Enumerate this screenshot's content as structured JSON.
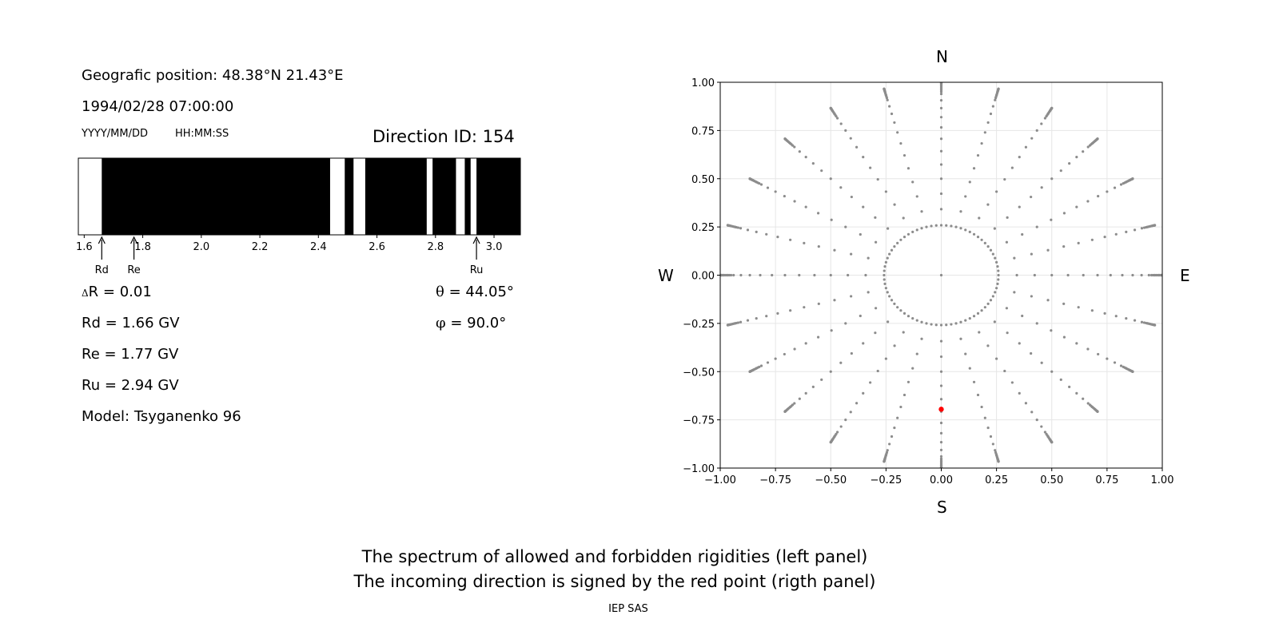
{
  "left_panel": {
    "position_line": "Geografic position: 48.38°N 21.43°E",
    "datetime": "1994/02/28 07:00:00",
    "date_format": "YYYY/MM/DD",
    "time_format": "HH:MM:SS",
    "direction_id": "Direction ID: 154",
    "markers": {
      "rd": "Rd",
      "re": "Re",
      "ru": "Ru"
    },
    "delta_r_symbol": "Δ",
    "delta_r": "R = 0.01",
    "rd": "Rd = 1.66 GV",
    "re": "Re = 1.77 GV",
    "ru": "Ru = 2.94 GV",
    "model": "Model: Tsyganenko 96",
    "theta_symbol": "θ",
    "theta": " = 44.05°",
    "phi_symbol": "φ",
    "phi": " = 90.0°"
  },
  "compass": {
    "n": "N",
    "s": "S",
    "w": "W",
    "e": "E"
  },
  "caption": {
    "line1": "The spectrum of allowed and forbidden rigidities (left panel)",
    "line2": "The incoming direction is signed by the red point (rigth panel)",
    "credit": "IEP SAS"
  },
  "chart_data": [
    {
      "type": "bar",
      "description_kind": "rigidity spectrum",
      "xlim": [
        1.58,
        3.09
      ],
      "xticks": [
        1.6,
        1.8,
        2.0,
        2.2,
        2.4,
        2.6,
        2.8,
        3.0
      ],
      "xtick_labels": [
        "1.6",
        "1.8",
        "2.0",
        "2.2",
        "2.4",
        "2.6",
        "2.8",
        "3.0"
      ],
      "allowed_color": "#000000",
      "forbidden_color": "#ffffff",
      "allowed_intervals": [
        [
          1.66,
          2.44
        ],
        [
          2.49,
          2.52
        ],
        [
          2.56,
          2.77
        ],
        [
          2.79,
          2.87
        ],
        [
          2.9,
          2.92
        ],
        [
          2.94,
          3.09
        ]
      ],
      "markers": {
        "Rd": 1.66,
        "Re": 1.77,
        "Ru": 2.94
      }
    },
    {
      "type": "scatter",
      "xlim": [
        -1.0,
        1.0
      ],
      "ylim": [
        -1.0,
        1.0
      ],
      "xticks": [
        -1.0,
        -0.75,
        -0.5,
        -0.25,
        0.0,
        0.25,
        0.5,
        0.75,
        1.0
      ],
      "yticks": [
        -1.0,
        -0.75,
        -0.5,
        -0.25,
        0.0,
        0.25,
        0.5,
        0.75,
        1.0
      ],
      "xtick_labels": [
        "−1.00",
        "−0.75",
        "−0.50",
        "−0.25",
        "0.00",
        "0.25",
        "0.50",
        "0.75",
        "1.00"
      ],
      "ytick_labels": [
        "−1.00",
        "−0.75",
        "−0.50",
        "−0.25",
        "0.00",
        "0.25",
        "0.50",
        "0.75",
        "1.00"
      ],
      "grid": true,
      "grid_points": {
        "color": "#8c8c8c",
        "center": [
          0.0,
          0.0
        ],
        "zenith_step_deg": 5,
        "zenith_max_deg": 90,
        "inner_ring_zenith_deg": 15,
        "inner_ring_azimuth_step_deg": 5,
        "azimuth_step_deg": 15
      },
      "highlight_point": {
        "x": 0.0,
        "y": -0.695,
        "color": "#ff0000"
      }
    }
  ]
}
